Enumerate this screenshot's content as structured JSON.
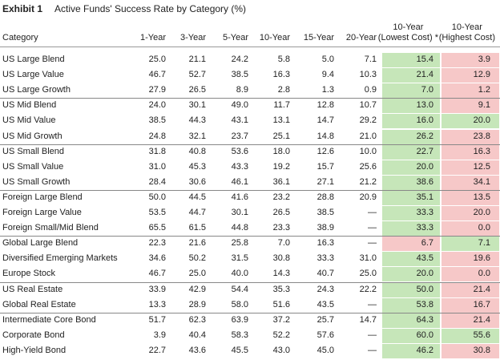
{
  "title": {
    "label": "Exhibit 1",
    "text": "Active Funds' Success Rate by Category (%)"
  },
  "table": {
    "header": [
      "Category",
      "1-Year",
      "3-Year",
      "5-Year",
      "10-Year",
      "15-Year",
      "20-Year",
      "10-Year\n(Lowest Cost) *",
      "10-Year\n(Highest Cost)"
    ],
    "colors": {
      "green": "#c6e6b9",
      "red": "#f6c8c8"
    },
    "groups": [
      {
        "rows": [
          {
            "category": "US Large Blend",
            "values": [
              "25.0",
              "21.1",
              "24.2",
              "5.8",
              "5.0",
              "7.1",
              "15.4",
              "3.9"
            ],
            "shade": [
              "green",
              "red"
            ]
          },
          {
            "category": "US Large Value",
            "values": [
              "46.7",
              "52.7",
              "38.5",
              "16.3",
              "9.4",
              "10.3",
              "21.4",
              "12.9"
            ],
            "shade": [
              "green",
              "red"
            ]
          },
          {
            "category": "US Large Growth",
            "values": [
              "27.9",
              "26.5",
              "8.9",
              "2.8",
              "1.3",
              "0.9",
              "7.0",
              "1.2"
            ],
            "shade": [
              "green",
              "red"
            ]
          }
        ]
      },
      {
        "rows": [
          {
            "category": "US Mid Blend",
            "values": [
              "24.0",
              "30.1",
              "49.0",
              "11.7",
              "12.8",
              "10.7",
              "13.0",
              "9.1"
            ],
            "shade": [
              "green",
              "red"
            ]
          },
          {
            "category": "US Mid Value",
            "values": [
              "38.5",
              "44.3",
              "43.1",
              "13.1",
              "14.7",
              "29.2",
              "16.0",
              "20.0"
            ],
            "shade": [
              "green",
              "green"
            ]
          },
          {
            "category": "US Mid Growth",
            "values": [
              "24.8",
              "32.1",
              "23.7",
              "25.1",
              "14.8",
              "21.0",
              "26.2",
              "23.8"
            ],
            "shade": [
              "green",
              "red"
            ]
          }
        ]
      },
      {
        "rows": [
          {
            "category": "US Small Blend",
            "values": [
              "31.8",
              "40.8",
              "53.6",
              "18.0",
              "12.6",
              "10.0",
              "22.7",
              "16.3"
            ],
            "shade": [
              "green",
              "red"
            ]
          },
          {
            "category": "US Small Value",
            "values": [
              "31.0",
              "45.3",
              "43.3",
              "19.2",
              "15.7",
              "25.6",
              "20.0",
              "12.5"
            ],
            "shade": [
              "green",
              "red"
            ]
          },
          {
            "category": "US Small Growth",
            "values": [
              "28.4",
              "30.6",
              "46.1",
              "36.1",
              "27.1",
              "21.2",
              "38.6",
              "34.1"
            ],
            "shade": [
              "green",
              "red"
            ]
          }
        ]
      },
      {
        "rows": [
          {
            "category": "Foreign Large Blend",
            "values": [
              "50.0",
              "44.5",
              "41.6",
              "23.2",
              "28.8",
              "20.9",
              "35.1",
              "13.5"
            ],
            "shade": [
              "green",
              "red"
            ]
          },
          {
            "category": "Foreign Large Value",
            "values": [
              "53.5",
              "44.7",
              "30.1",
              "26.5",
              "38.5",
              "—",
              "33.3",
              "20.0"
            ],
            "shade": [
              "green",
              "red"
            ]
          },
          {
            "category": "Foreign Small/Mid Blend",
            "values": [
              "65.5",
              "61.5",
              "44.8",
              "23.3",
              "38.9",
              "—",
              "33.3",
              "0.0"
            ],
            "shade": [
              "green",
              "red"
            ]
          }
        ]
      },
      {
        "rows": [
          {
            "category": "Global Large Blend",
            "values": [
              "22.3",
              "21.6",
              "25.8",
              "7.0",
              "16.3",
              "—",
              "6.7",
              "7.1"
            ],
            "shade": [
              "red",
              "green"
            ]
          },
          {
            "category": "Diversified Emerging Markets",
            "values": [
              "34.6",
              "50.2",
              "31.5",
              "30.8",
              "33.3",
              "31.0",
              "43.5",
              "19.6"
            ],
            "shade": [
              "green",
              "red"
            ]
          },
          {
            "category": "Europe Stock",
            "values": [
              "46.7",
              "25.0",
              "40.0",
              "14.3",
              "40.7",
              "25.0",
              "20.0",
              "0.0"
            ],
            "shade": [
              "green",
              "red"
            ]
          }
        ]
      },
      {
        "rows": [
          {
            "category": "US Real Estate",
            "values": [
              "33.9",
              "42.9",
              "54.4",
              "35.3",
              "24.3",
              "22.2",
              "50.0",
              "21.4"
            ],
            "shade": [
              "green",
              "red"
            ]
          },
          {
            "category": "Global Real Estate",
            "values": [
              "13.3",
              "28.9",
              "58.0",
              "51.6",
              "43.5",
              "—",
              "53.8",
              "16.7"
            ],
            "shade": [
              "green",
              "red"
            ]
          }
        ]
      },
      {
        "rows": [
          {
            "category": "Intermediate Core Bond",
            "values": [
              "51.7",
              "62.3",
              "63.9",
              "37.2",
              "25.7",
              "14.7",
              "64.3",
              "21.4"
            ],
            "shade": [
              "green",
              "red"
            ]
          },
          {
            "category": "Corporate Bond",
            "values": [
              "3.9",
              "40.4",
              "58.3",
              "52.2",
              "57.6",
              "—",
              "60.0",
              "55.6"
            ],
            "shade": [
              "green",
              "green"
            ]
          },
          {
            "category": "High-Yield Bond",
            "values": [
              "22.7",
              "43.6",
              "45.5",
              "43.0",
              "45.0",
              "—",
              "46.2",
              "30.8"
            ],
            "shade": [
              "green",
              "red"
            ]
          }
        ]
      }
    ]
  }
}
